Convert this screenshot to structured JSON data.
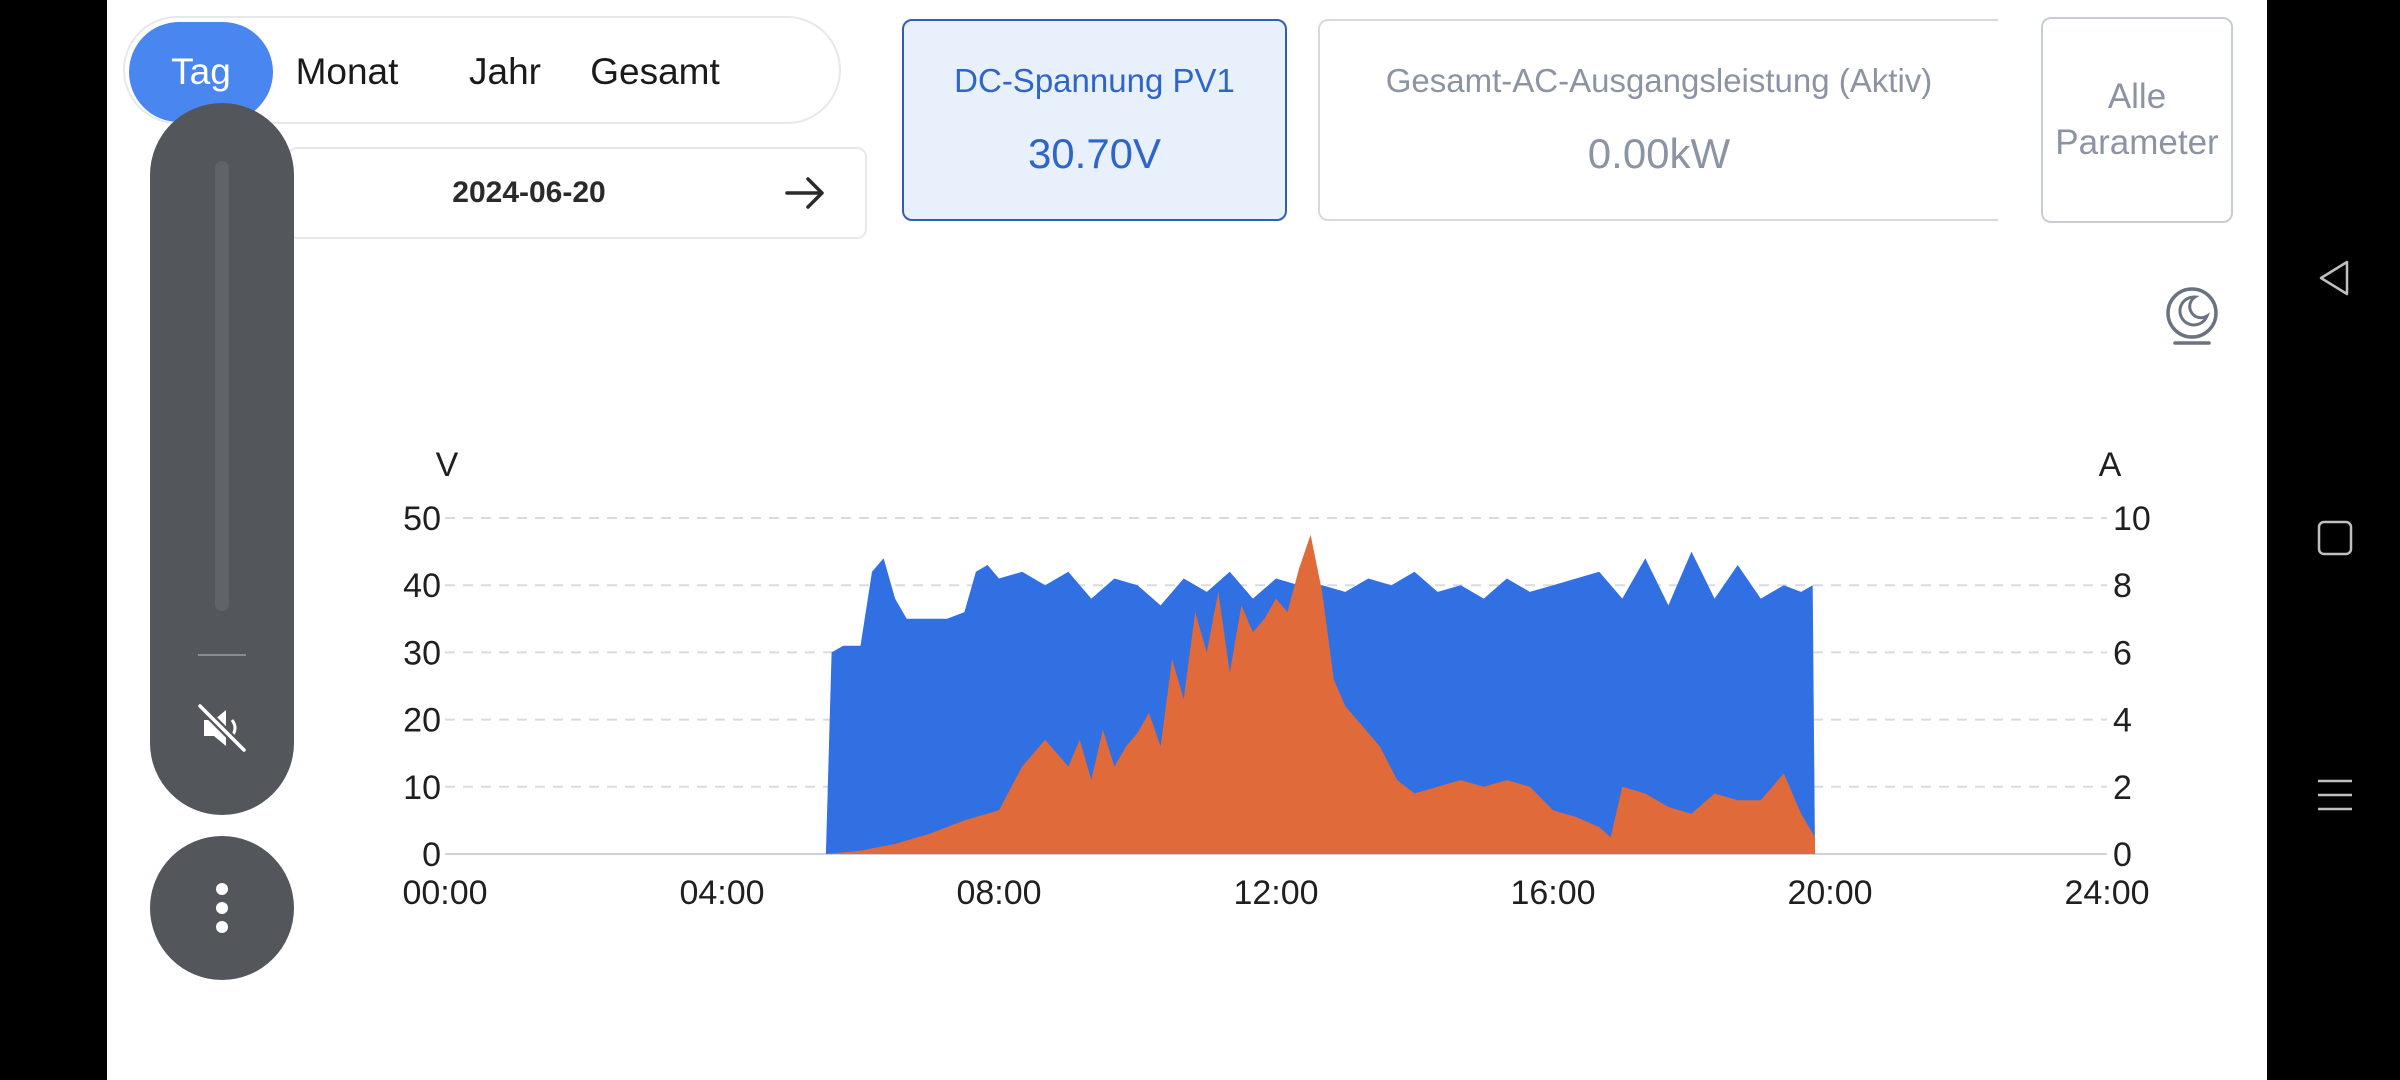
{
  "tabs": [
    {
      "label": "Tag",
      "active": true
    },
    {
      "label": "Monat",
      "active": false
    },
    {
      "label": "Jahr",
      "active": false
    },
    {
      "label": "Gesamt",
      "active": false
    }
  ],
  "date": "2024-06-20",
  "cards": [
    {
      "label": "DC-Spannung PV1",
      "value": "30.70V",
      "selected": true
    },
    {
      "label": "Gesamt-AC-Ausgangsleistung (Aktiv)",
      "value": "0.00kW",
      "selected": false
    }
  ],
  "all_params": {
    "line1": "Alle",
    "line2": "Parameter"
  },
  "colors": {
    "accent": "#4a86f0",
    "voltage": "#3170e3",
    "current": "#e06a3a"
  },
  "icons": {
    "theme": "moon-theme-icon",
    "arrow": "arrow-right-icon",
    "mute": "volume-mute-icon",
    "more": "more-vertical-icon",
    "back": "back-triangle-icon",
    "home": "home-square-icon",
    "menu": "menu-lines-icon"
  },
  "chart_data": {
    "type": "area",
    "ylabel_left": "V",
    "ylabel_right": "A",
    "xlim": [
      "00:00",
      "24:00"
    ],
    "xticks": [
      "00:00",
      "04:00",
      "08:00",
      "12:00",
      "16:00",
      "20:00",
      "24:00"
    ],
    "ylim_left": [
      0,
      50
    ],
    "yticks_left": [
      0,
      10,
      20,
      30,
      40,
      50
    ],
    "ylim_right": [
      0,
      10
    ],
    "yticks_right": [
      0,
      2,
      4,
      6,
      8,
      10
    ],
    "grid": true,
    "series": [
      {
        "axis": "left",
        "x": [
          "05:30",
          "05:35",
          "05:45",
          "06:00",
          "06:10",
          "06:20",
          "06:30",
          "06:40",
          "06:50",
          "07:00",
          "07:15",
          "07:30",
          "07:40",
          "07:50",
          "08:00",
          "08:20",
          "08:40",
          "09:00",
          "09:20",
          "09:40",
          "10:00",
          "10:20",
          "10:40",
          "11:00",
          "11:20",
          "11:40",
          "12:00",
          "12:20",
          "12:40",
          "13:00",
          "13:20",
          "13:40",
          "14:00",
          "14:20",
          "14:40",
          "15:00",
          "15:20",
          "15:40",
          "16:00",
          "16:20",
          "16:40",
          "17:00",
          "17:20",
          "17:40",
          "18:00",
          "18:20",
          "18:40",
          "19:00",
          "19:20",
          "19:35",
          "19:45",
          "19:47"
        ],
        "y": [
          0,
          30,
          31,
          31,
          42,
          44,
          38,
          35,
          35,
          35,
          35,
          36,
          42,
          43,
          41,
          42,
          40,
          42,
          38,
          41,
          40,
          37,
          41,
          39,
          42,
          38,
          41,
          40,
          40,
          39,
          41,
          40,
          42,
          39,
          40,
          38,
          41,
          39,
          40,
          41,
          42,
          38,
          44,
          37,
          45,
          38,
          43,
          38,
          40,
          39,
          40,
          0
        ]
      },
      {
        "axis": "right",
        "x": [
          "05:30",
          "06:00",
          "06:30",
          "07:00",
          "07:30",
          "08:00",
          "08:20",
          "08:40",
          "09:00",
          "09:10",
          "09:20",
          "09:30",
          "09:40",
          "09:50",
          "10:00",
          "10:10",
          "10:20",
          "10:30",
          "10:40",
          "10:50",
          "11:00",
          "11:10",
          "11:20",
          "11:30",
          "11:40",
          "11:50",
          "12:00",
          "12:10",
          "12:20",
          "12:30",
          "12:40",
          "12:50",
          "13:00",
          "13:15",
          "13:30",
          "13:45",
          "14:00",
          "14:20",
          "14:40",
          "15:00",
          "15:20",
          "15:40",
          "16:00",
          "16:20",
          "16:40",
          "16:50",
          "17:00",
          "17:20",
          "17:40",
          "18:00",
          "18:20",
          "18:40",
          "19:00",
          "19:20",
          "19:35",
          "19:47"
        ],
        "y": [
          0,
          0.1,
          0.3,
          0.6,
          1.0,
          1.3,
          2.6,
          3.4,
          2.6,
          3.4,
          2.2,
          3.7,
          2.6,
          3.2,
          3.6,
          4.2,
          3.2,
          5.8,
          4.6,
          7.2,
          6.0,
          7.8,
          5.4,
          7.4,
          6.6,
          7.0,
          7.6,
          7.2,
          8.5,
          9.5,
          7.8,
          5.2,
          4.4,
          3.8,
          3.2,
          2.2,
          1.8,
          2.0,
          2.2,
          2.0,
          2.2,
          2.0,
          1.3,
          1.1,
          0.8,
          0.5,
          2.0,
          1.8,
          1.4,
          1.2,
          1.8,
          1.6,
          1.6,
          2.4,
          1.2,
          0.5
        ]
      }
    ]
  }
}
